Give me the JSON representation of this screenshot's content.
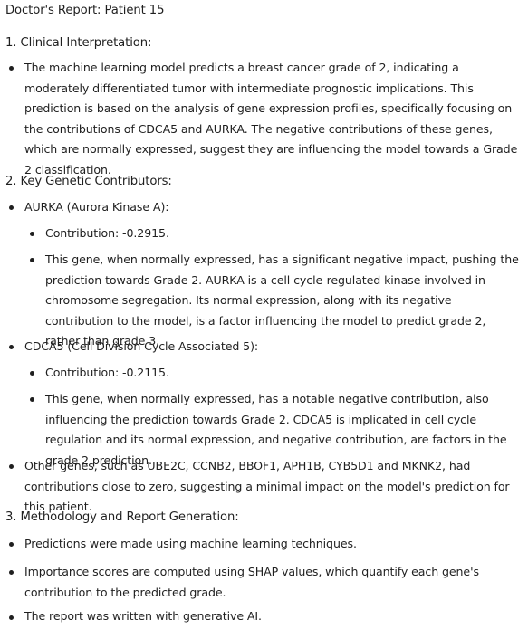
{
  "report": {
    "title": "Doctor's Report: Patient 15",
    "sections": {
      "interpretation": {
        "heading": "1. Clinical Interpretation:",
        "text": "The machine learning model predicts a breast cancer grade of 2, indicating a moderately differentiated tumor with intermediate prognostic implications. This prediction is based on the analysis of gene expression profiles, specifically focusing on the contributions of CDCA5 and AURKA. The negative contributions of these genes, which are normally expressed, suggest they are influencing the model towards a Grade 2 classification."
      },
      "contributors": {
        "heading": "2. Key Genetic Contributors:",
        "aurka": {
          "name": "AURKA (Aurora Kinase A):",
          "contribution": "Contribution: -0.2915.",
          "description": "This gene, when normally expressed, has a significant negative impact, pushing the prediction towards Grade 2. AURKA is a cell cycle-regulated kinase involved in chromosome segregation. Its normal expression, along with its negative contribution to the model, is a factor influencing the model to predict grade 2, rather than grade 3."
        },
        "cdca5": {
          "name": "CDCA5 (Cell Division Cycle Associated 5):",
          "contribution": "Contribution: -0.2115.",
          "description": "This gene, when normally expressed, has a notable negative contribution, also influencing the prediction towards Grade 2. CDCA5 is implicated in cell cycle regulation and its normal expression, and negative contribution, are factors in the grade 2 prediction."
        },
        "other": "Other genes, such as UBE2C, CCNB2, BBOF1, APH1B, CYB5D1 and MKNK2, had contributions close to zero, suggesting a minimal impact on the model's prediction for this patient."
      },
      "methodology": {
        "heading": "3. Methodology and Report Generation:",
        "items": [
          "Predictions were made using machine learning techniques.",
          "Importance scores are computed using SHAP values, which quantify each gene's contribution to the predicted grade.",
          "The report was written with generative AI."
        ]
      }
    }
  }
}
